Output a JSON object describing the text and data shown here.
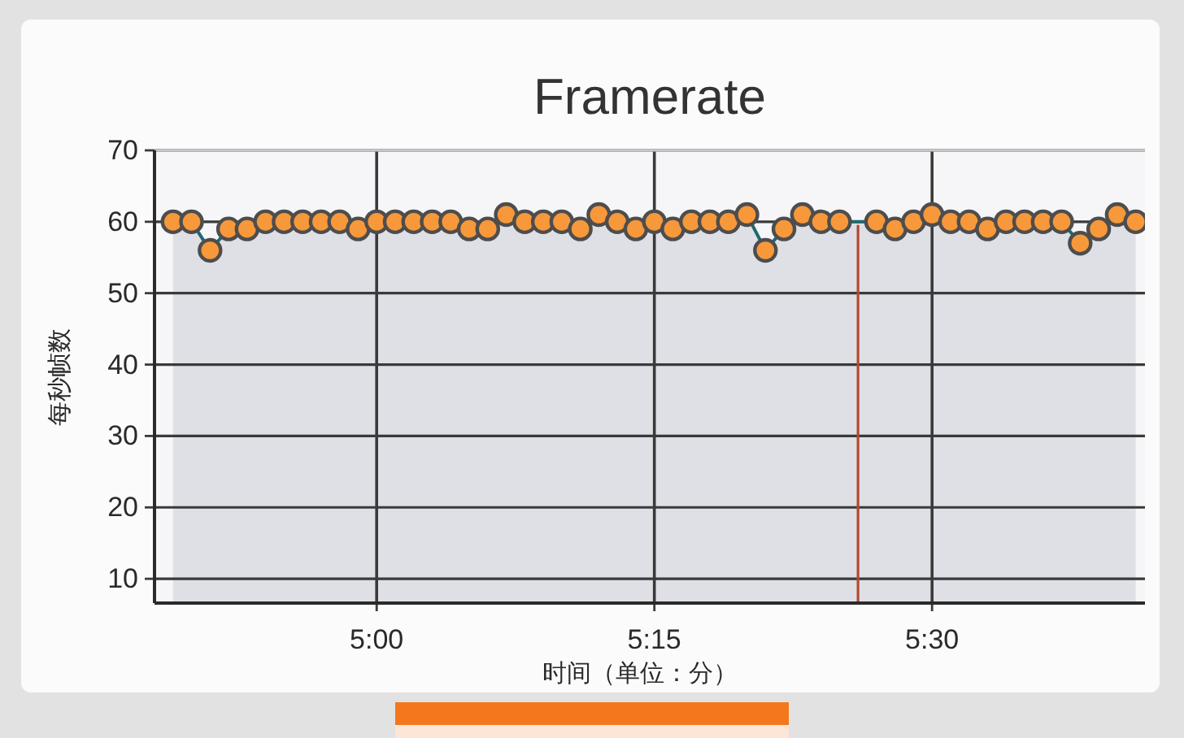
{
  "chart_data": {
    "type": "area",
    "title": "Framerate",
    "xlabel": "时间（单位：分）",
    "ylabel": "每秒帧数",
    "series": [
      {
        "color": "#dfdfe6",
        "colors": [
          "#f7983b",
          "#f7983b",
          "#f7983b",
          "#f7983b",
          "#f7983b",
          "#f7983b",
          "#f7983b",
          "#f7983b",
          "#f7983b",
          "#f7983b",
          "#f7983b",
          "#f7983b",
          "#f7983b",
          "#f7983b",
          "#f7983b",
          "#f7983b",
          "#f7983b",
          "#f7983b",
          "#f7983b",
          "#f7983b",
          "#f7983b",
          "#f7983b",
          "#f7983b",
          "#f7983b",
          "#f7983b",
          "#f7983b",
          "#f7983b",
          "#f7983b",
          "#f7983b",
          "#f7983b",
          "#f7983b",
          "#f7983b",
          "#f7983b",
          "#f7983b",
          "#f7983b",
          "#f7983b",
          "#f7983b",
          "#f7983b",
          "#f7983b",
          "#f7983b",
          "#f7983b",
          "#f7983b",
          "#f7983b",
          "#f7983b",
          "#f7983b",
          "#f7983b",
          "#f7983b",
          "#f7983b",
          "#f7983b",
          "#f7983b",
          "#f7983b",
          "#f7983b"
        ],
        "x": [
          289,
          290,
          291,
          292,
          293,
          294,
          295,
          296,
          297,
          298,
          299,
          300,
          301,
          302,
          303,
          304,
          305,
          306,
          307,
          308,
          309,
          310,
          311,
          312,
          313,
          314,
          315,
          316,
          317,
          318,
          319,
          320,
          321,
          322,
          323,
          324,
          325,
          327,
          328,
          329,
          330,
          331,
          332,
          333,
          334,
          335,
          336,
          337,
          338,
          339,
          340,
          341
        ],
        "values": [
          60,
          60,
          56,
          59,
          59,
          60,
          60,
          60,
          60,
          60,
          59,
          60,
          60,
          60,
          60,
          60,
          59,
          59,
          61,
          60,
          60,
          60,
          59,
          61,
          60,
          59,
          60,
          59,
          60,
          60,
          60,
          61,
          56,
          59,
          61,
          60,
          60,
          60,
          59,
          60,
          61,
          60,
          60,
          59,
          60,
          60,
          60,
          60,
          57,
          59,
          61,
          60
        ]
      }
    ],
    "xlim": [
      288,
      341.5
    ],
    "xticks": [
      {
        "value": 300,
        "label": "5:00"
      },
      {
        "value": 315,
        "label": "5:15"
      },
      {
        "value": 330,
        "label": "5:30"
      }
    ],
    "ylim": [
      6.6,
      70
    ],
    "yticks": [
      10,
      20,
      30,
      40,
      50,
      60,
      70
    ],
    "grid": true,
    "marker": "circle",
    "ref_lines": [
      {
        "axis": "x",
        "value": 326,
        "color": "#b4492b"
      }
    ]
  }
}
